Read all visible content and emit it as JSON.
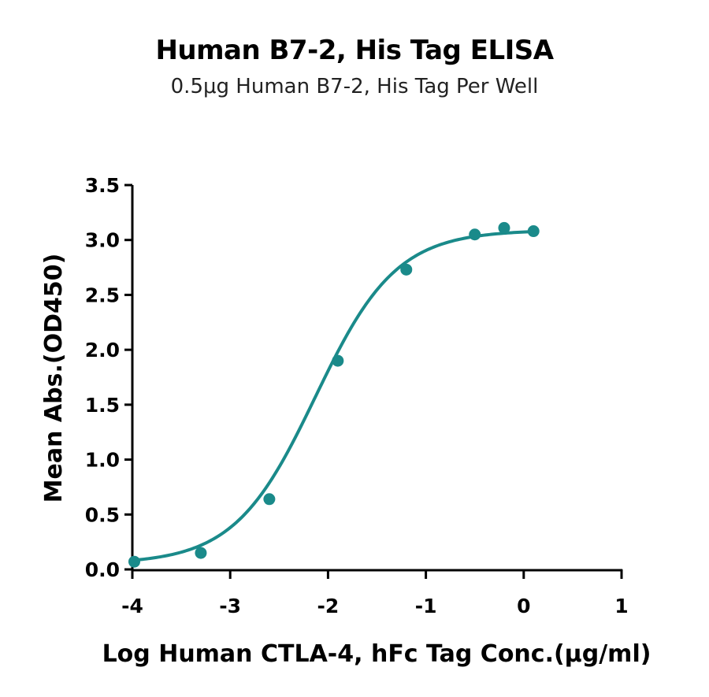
{
  "chart_data": {
    "type": "scatter",
    "title": "Human B7-2, His Tag ELISA",
    "subtitle": "0.5μg Human B7-2, His Tag Per Well",
    "xlabel": "Log Human CTLA-4, hFc  Tag Conc.(μg/ml)",
    "ylabel": "Mean Abs.(OD450)",
    "xlim": [
      -4,
      1
    ],
    "ylim": [
      0,
      3.5
    ],
    "x_ticks": [
      "-4",
      "-3",
      "-2",
      "-1",
      "0",
      "1"
    ],
    "y_ticks": [
      "0.0",
      "0.5",
      "1.0",
      "1.5",
      "2.0",
      "2.5",
      "3.0",
      "3.5"
    ],
    "grid": false,
    "series": [
      {
        "points": [
          {
            "x": -3.98,
            "y": 0.07
          },
          {
            "x": -3.3,
            "y": 0.15
          },
          {
            "x": -2.6,
            "y": 0.64
          },
          {
            "x": -1.9,
            "y": 1.9
          },
          {
            "x": -1.2,
            "y": 2.73
          },
          {
            "x": -0.5,
            "y": 3.05
          },
          {
            "x": -0.2,
            "y": 3.11
          },
          {
            "x": 0.1,
            "y": 3.08
          }
        ],
        "fit": {
          "bottom": 0.05,
          "top": 3.09,
          "log_ec50": -2.13,
          "hill_slope": 1.05
        }
      }
    ],
    "color": "#1a8a8a"
  }
}
